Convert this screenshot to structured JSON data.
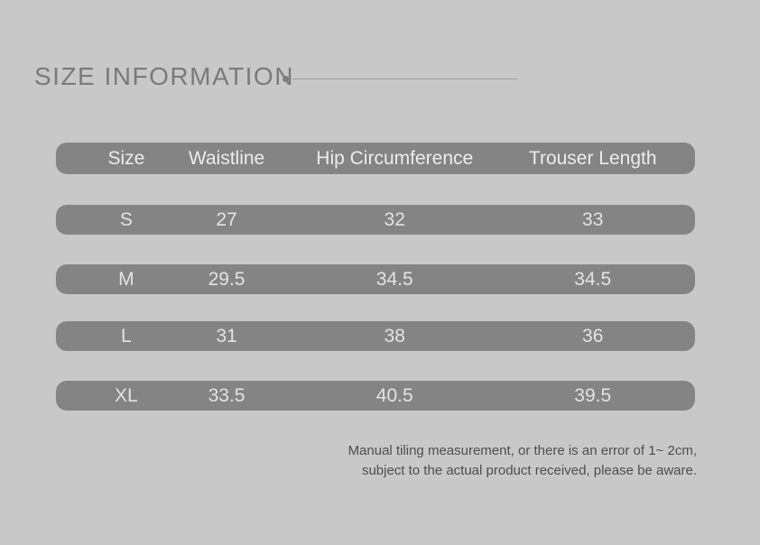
{
  "header": {
    "title": "SIZE INFORMATION"
  },
  "chart_data": {
    "type": "table",
    "title": "SIZE INFORMATION",
    "columns": [
      "Size",
      "Waistline",
      "Hip Circumference",
      "Trouser Length"
    ],
    "rows": [
      [
        "S",
        "27",
        "32",
        "33"
      ],
      [
        "M",
        "29.5",
        "34.5",
        "34.5"
      ],
      [
        "L",
        "31",
        "38",
        "36"
      ],
      [
        "XL",
        "33.5",
        "40.5",
        "39.5"
      ]
    ],
    "footnote": [
      "Manual tiling measurement, or there is an error of 1~ 2cm,",
      "subject to the actual product received, please be aware."
    ]
  },
  "footer": {
    "line1": "Manual tiling measurement, or there is an error of 1~ 2cm,",
    "line2": "subject to the actual product received, please be aware."
  },
  "colors": {
    "background": "#c8c8c8",
    "bar": "#848484",
    "bar_text": "#e3e3e3",
    "title_text": "#7a7a7a",
    "footer_text": "#4e4e4e"
  }
}
